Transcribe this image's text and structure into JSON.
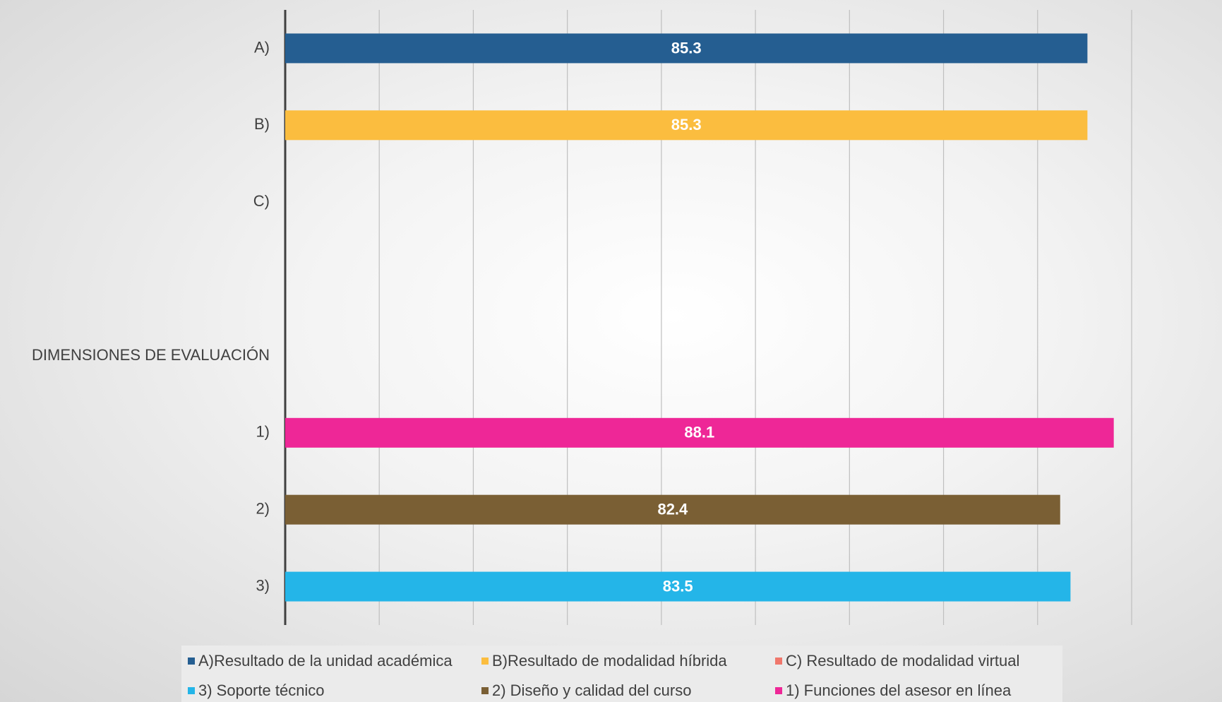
{
  "chart_data": {
    "type": "bar",
    "orientation": "horizontal",
    "categories": [
      "A)",
      "B)",
      "C)",
      null,
      "DIMENSIONES DE EVALUACIÓN",
      "1)",
      "2)",
      "3)"
    ],
    "series": [
      {
        "name": "A)Resultado de la unidad académica",
        "color": "#255e91",
        "values": [
          85.3,
          null,
          null,
          null,
          null,
          null,
          null,
          null
        ]
      },
      {
        "name": "B)Resultado de modalidad híbrida",
        "color": "#fbbd3f",
        "values": [
          null,
          85.3,
          null,
          null,
          null,
          null,
          null,
          null
        ]
      },
      {
        "name": "C) Resultado de modalidad virtual",
        "color": "#f0776c",
        "values": [
          null,
          null,
          null,
          null,
          null,
          null,
          null,
          null
        ]
      },
      {
        "name": "3) Soporte técnico",
        "color": "#24b5e8",
        "values": [
          null,
          null,
          null,
          null,
          null,
          null,
          null,
          83.5
        ]
      },
      {
        "name": "2) Diseño y calidad del curso",
        "color": "#7a5f34",
        "values": [
          null,
          null,
          null,
          null,
          null,
          null,
          82.4,
          null
        ]
      },
      {
        "name": "1) Funciones del asesor en línea",
        "color": "#ee2797",
        "values": [
          null,
          null,
          null,
          null,
          null,
          88.1,
          null,
          null
        ]
      }
    ],
    "xlim": [
      0,
      90
    ],
    "xticks": [
      0,
      10,
      20,
      30,
      40,
      50,
      60,
      70,
      80,
      90
    ],
    "grid": true,
    "legend": "bottom"
  }
}
